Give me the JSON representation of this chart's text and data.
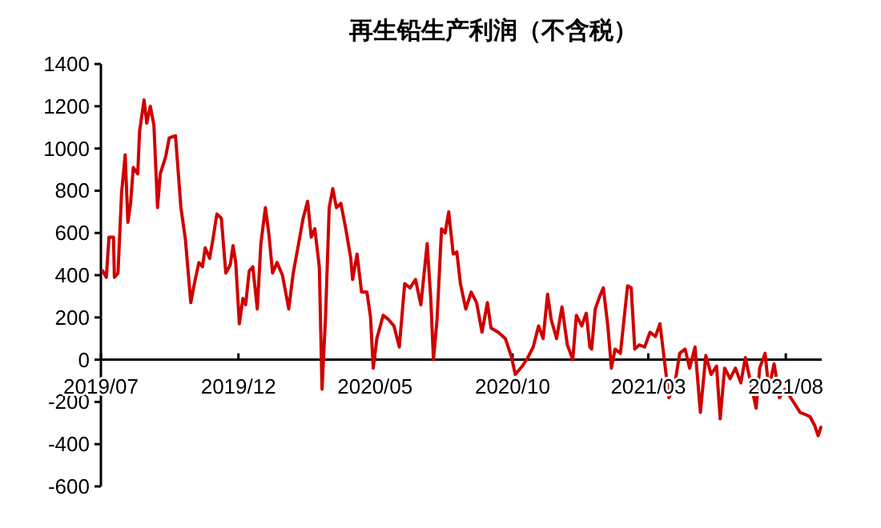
{
  "chart_data": {
    "type": "line",
    "title": "再生铅生产利润（不含税）",
    "x": [
      "2019-07-03",
      "2019-07-07",
      "2019-07-10",
      "2019-07-15",
      "2019-07-16",
      "2019-07-20",
      "2019-07-24",
      "2019-07-28",
      "2019-07-31",
      "2019-08-03",
      "2019-08-06",
      "2019-08-11",
      "2019-08-13",
      "2019-08-18",
      "2019-08-21",
      "2019-08-25",
      "2019-08-29",
      "2019-09-02",
      "2019-09-05",
      "2019-09-11",
      "2019-09-15",
      "2019-09-22",
      "2019-09-28",
      "2019-10-03",
      "2019-10-09",
      "2019-10-13",
      "2019-10-18",
      "2019-10-22",
      "2019-10-25",
      "2019-10-30",
      "2019-11-03",
      "2019-11-07",
      "2019-11-12",
      "2019-11-15",
      "2019-11-17",
      "2019-11-22",
      "2019-11-25",
      "2019-11-28",
      "2019-12-02",
      "2019-12-06",
      "2019-12-09",
      "2019-12-13",
      "2019-12-17",
      "2019-12-22",
      "2019-12-26",
      "2019-12-31",
      "2020-01-04",
      "2020-01-08",
      "2020-01-13",
      "2020-01-19",
      "2020-01-26",
      "2020-01-31",
      "2020-02-06",
      "2020-02-11",
      "2020-02-16",
      "2020-02-20",
      "2020-02-24",
      "2020-02-29",
      "2020-03-03",
      "2020-03-07",
      "2020-03-11",
      "2020-03-15",
      "2020-03-19",
      "2020-03-24",
      "2020-03-29",
      "2020-04-04",
      "2020-04-06",
      "2020-04-11",
      "2020-04-16",
      "2020-04-22",
      "2020-04-26",
      "2020-04-29",
      "2020-05-03",
      "2020-05-10",
      "2020-05-16",
      "2020-05-22",
      "2020-05-28",
      "2020-06-03",
      "2020-06-09",
      "2020-06-15",
      "2020-06-21",
      "2020-06-28",
      "2020-07-02",
      "2020-07-05",
      "2020-07-09",
      "2020-07-14",
      "2020-07-18",
      "2020-07-22",
      "2020-07-27",
      "2020-07-31",
      "2020-08-04",
      "2020-08-10",
      "2020-08-16",
      "2020-08-22",
      "2020-08-28",
      "2020-09-03",
      "2020-09-07",
      "2020-09-15",
      "2020-09-23",
      "2020-09-30",
      "2020-10-04",
      "2020-10-12",
      "2020-10-18",
      "2020-10-24",
      "2020-10-30",
      "2020-11-04",
      "2020-11-09",
      "2020-11-13",
      "2020-11-19",
      "2020-11-25",
      "2020-12-01",
      "2020-12-07",
      "2020-12-11",
      "2020-12-17",
      "2020-12-22",
      "2020-12-26",
      "2020-12-28",
      "2021-01-01",
      "2021-01-06",
      "2021-01-10",
      "2021-01-15",
      "2021-01-19",
      "2021-01-23",
      "2021-01-29",
      "2021-02-06",
      "2021-02-10",
      "2021-02-14",
      "2021-02-19",
      "2021-02-25",
      "2021-03-03",
      "2021-03-09",
      "2021-03-14",
      "2021-03-18",
      "2021-03-24",
      "2021-03-30",
      "2021-04-05",
      "2021-04-11",
      "2021-04-16",
      "2021-04-22",
      "2021-04-28",
      "2021-05-04",
      "2021-05-10",
      "2021-05-16",
      "2021-05-20",
      "2021-05-25",
      "2021-05-31",
      "2021-06-06",
      "2021-06-12",
      "2021-06-17",
      "2021-06-23",
      "2021-06-29",
      "2021-07-03",
      "2021-07-09",
      "2021-07-13",
      "2021-07-19",
      "2021-07-25",
      "2021-07-31",
      "2021-08-05",
      "2021-08-11",
      "2021-08-17",
      "2021-08-23",
      "2021-08-28",
      "2021-09-02",
      "2021-09-06",
      "2021-09-09"
    ],
    "series": [
      {
        "color": "#d00000",
        "values": [
          420,
          390,
          580,
          580,
          390,
          410,
          790,
          970,
          650,
          740,
          910,
          880,
          1080,
          1230,
          1120,
          1200,
          1110,
          720,
          880,
          960,
          1050,
          1060,
          720,
          570,
          270,
          360,
          460,
          440,
          530,
          480,
          580,
          690,
          670,
          510,
          410,
          450,
          540,
          460,
          170,
          290,
          260,
          420,
          440,
          240,
          550,
          720,
          590,
          410,
          460,
          400,
          240,
          410,
          550,
          670,
          750,
          580,
          620,
          440,
          -140,
          210,
          720,
          810,
          720,
          740,
          630,
          480,
          380,
          500,
          320,
          320,
          200,
          -40,
          100,
          210,
          190,
          160,
          60,
          360,
          340,
          380,
          260,
          550,
          290,
          0,
          190,
          620,
          600,
          700,
          500,
          510,
          360,
          240,
          320,
          270,
          130,
          270,
          150,
          130,
          100,
          10,
          -70,
          -30,
          10,
          60,
          160,
          100,
          310,
          190,
          100,
          250,
          70,
          0,
          210,
          160,
          220,
          60,
          50,
          240,
          300,
          340,
          160,
          -40,
          50,
          30,
          350,
          340,
          50,
          70,
          60,
          130,
          110,
          170,
          30,
          -180,
          -130,
          30,
          50,
          -40,
          60,
          -250,
          20,
          -70,
          -30,
          -280,
          -40,
          -90,
          -40,
          -110,
          10,
          -110,
          -230,
          -40,
          30,
          -140,
          -20,
          -180,
          -140,
          -170,
          -210,
          -250,
          -260,
          -270,
          -310,
          -360,
          -320
        ]
      }
    ],
    "xlim": [
      "2019-07-01",
      "2021-09-10"
    ],
    "xticks": [
      {
        "value": "2019-07-01",
        "label": "2019/07"
      },
      {
        "value": "2019-12-01",
        "label": "2019/12"
      },
      {
        "value": "2020-05-01",
        "label": "2020/05"
      },
      {
        "value": "2020-10-01",
        "label": "2020/10"
      },
      {
        "value": "2021-03-01",
        "label": "2021/03"
      },
      {
        "value": "2021-08-01",
        "label": "2021/08"
      }
    ],
    "ylim": [
      -600,
      1400
    ],
    "yticks": [
      -600,
      -400,
      -200,
      0,
      200,
      400,
      600,
      800,
      1000,
      1200,
      1400
    ],
    "grid": false,
    "marker": "none",
    "line_style": "solid"
  }
}
